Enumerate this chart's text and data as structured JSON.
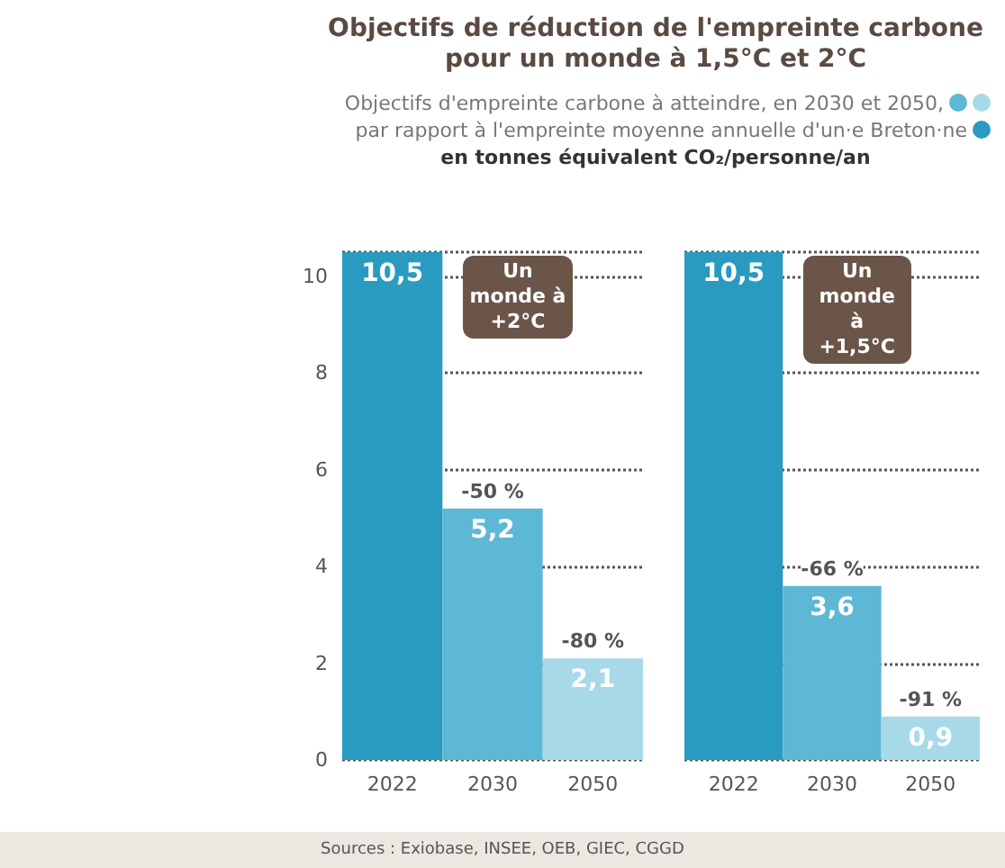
{
  "chart_data": [
    {
      "type": "bar",
      "title": "Objectifs de réduction de l'empreinte carbone pour un monde à 1,5°C et 2°C",
      "subtitle": "Objectifs d'empreinte carbone à atteindre, en 2030 et 2050,\npar rapport à l'empreinte moyenne annuelle d'un·e Breton·ne",
      "ylabel": "en tonnes équivalent CO₂/personne/an",
      "categories": [
        "2022",
        "2030",
        "2050"
      ],
      "values": [
        10.5,
        5.2,
        2.1
      ],
      "colors": [
        "#2a9bc0",
        "#5db8d6",
        "#a8d9e8"
      ],
      "value_labels": [
        "10,5",
        "5,2",
        "2,1"
      ],
      "annotations": [
        "Un monde à +2°C",
        {
          "text": "-50 %",
          "x": "2030",
          "y": 5.2
        },
        {
          "text": "-80 %",
          "x": "2050",
          "y": 2.1
        },
        "Sources : Exiobase, INSEE, OEB, GIEC, CGGD"
      ],
      "ylim": [
        0,
        10.5
      ],
      "yticks": [
        0,
        2,
        4,
        6,
        8,
        10
      ],
      "grid": "y"
    },
    {
      "type": "bar",
      "categories": [
        "2022",
        "2030",
        "2050"
      ],
      "values": [
        10.5,
        3.6,
        0.9
      ],
      "colors": [
        "#2a9bc0",
        "#5db8d6",
        "#a8d9e8"
      ],
      "value_labels": [
        "10,5",
        "3,6",
        "0,9"
      ],
      "annotations": [
        "Un monde à +1,5°C",
        {
          "text": "-66 %",
          "x": "2030",
          "y": 3.6
        },
        {
          "text": "-91 %",
          "x": "2050",
          "y": 0.9
        }
      ],
      "ylim": [
        0,
        10.5
      ],
      "yticks": [
        0,
        2,
        4,
        6,
        8,
        10
      ],
      "grid": "y",
      "tick_labels": "x"
    }
  ]
}
